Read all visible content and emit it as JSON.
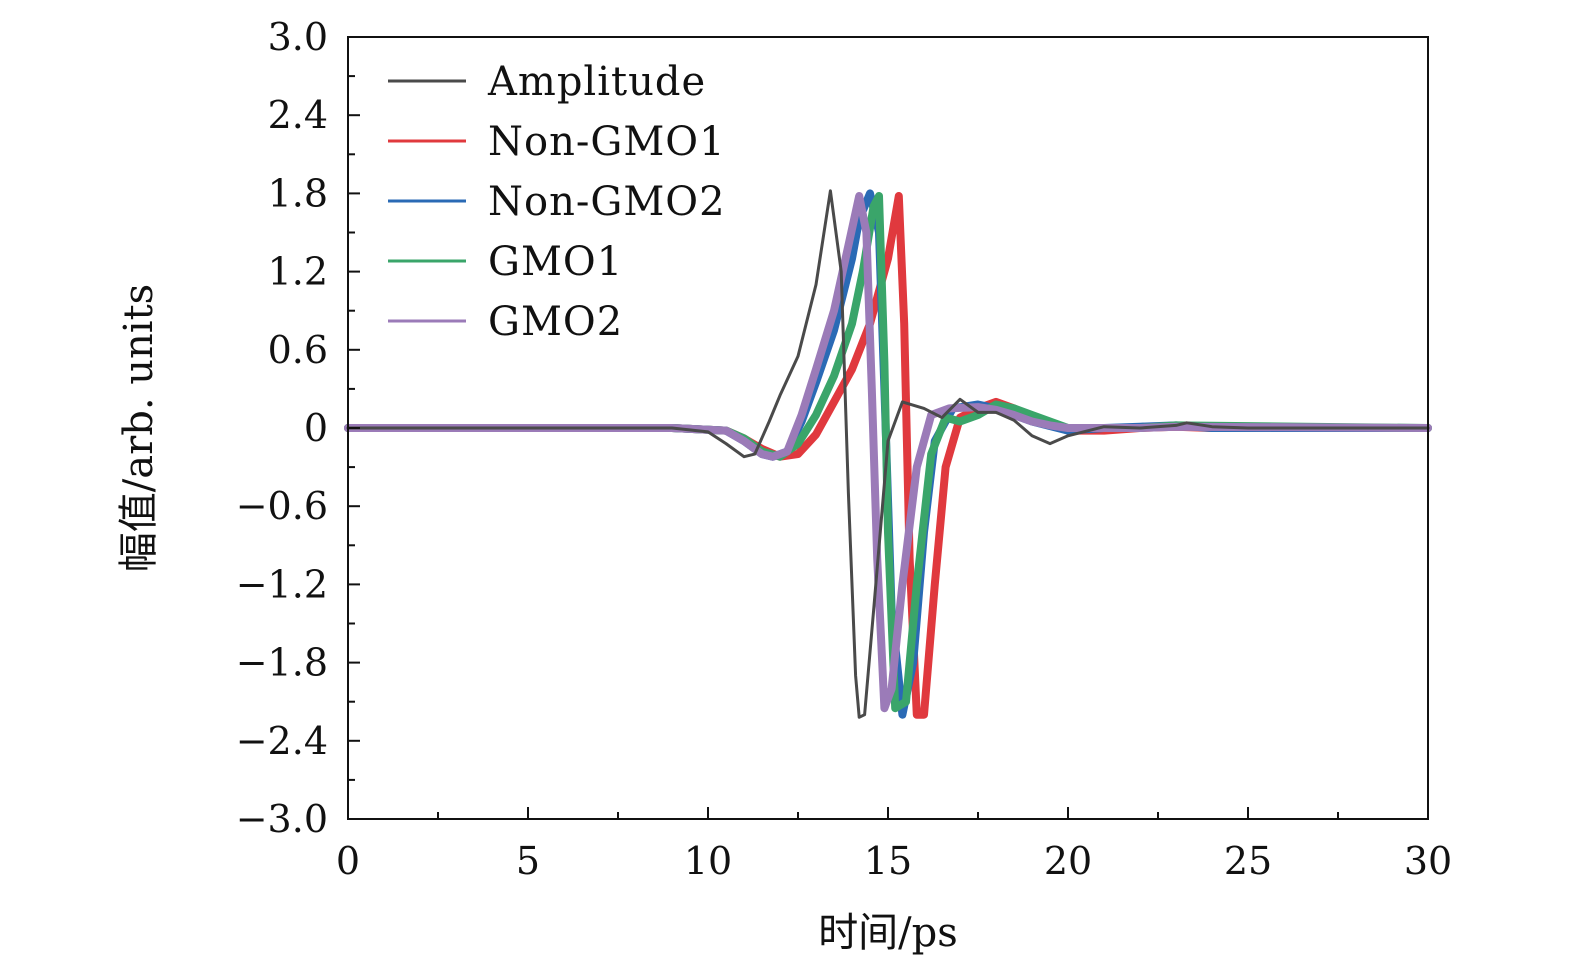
{
  "chart_data": {
    "type": "line",
    "title": "",
    "xlabel": "时间/ps",
    "ylabel": "幅值/arb. units",
    "xlim": [
      0,
      30
    ],
    "ylim": [
      -3.0,
      3.0
    ],
    "xticks": [
      0,
      5,
      10,
      15,
      20,
      25,
      30
    ],
    "xtick_labels": [
      "0",
      "5",
      "10",
      "15",
      "20",
      "25",
      "30"
    ],
    "yticks": [
      3.0,
      2.4,
      1.8,
      1.2,
      0.6,
      0,
      -0.6,
      -1.2,
      -1.8,
      -2.4,
      -3.0
    ],
    "ytick_labels": [
      "3.0",
      "2.4",
      "1.8",
      "1.2",
      "0.6",
      "0",
      "−0.6",
      "−1.2",
      "−1.8",
      "−2.4",
      "−3.0"
    ],
    "legend_position": "top-left",
    "grid": false,
    "series": [
      {
        "name": "Amplitude",
        "color": "#4a4a4a",
        "x": [
          0,
          9.0,
          10.0,
          10.5,
          11.0,
          11.3,
          11.7,
          12.0,
          12.5,
          13.0,
          13.4,
          13.7,
          13.9,
          14.1,
          14.2,
          14.35,
          14.6,
          15.0,
          15.4,
          16.0,
          16.5,
          17.0,
          17.5,
          18.0,
          18.5,
          19.0,
          19.5,
          20.0,
          21.0,
          22.0,
          23.0,
          23.3,
          24.0,
          25.0,
          30.0
        ],
        "y": [
          0,
          0,
          -0.03,
          -0.12,
          -0.22,
          -0.2,
          0.05,
          0.25,
          0.55,
          1.1,
          1.82,
          1.2,
          -0.5,
          -1.9,
          -2.22,
          -2.2,
          -1.4,
          -0.1,
          0.2,
          0.15,
          0.08,
          0.22,
          0.12,
          0.12,
          0.06,
          -0.06,
          -0.12,
          -0.06,
          0.01,
          0.0,
          0.02,
          0.04,
          0.01,
          0.0,
          0
        ]
      },
      {
        "name": "Non-GMO1",
        "color": "#e0393e",
        "x": [
          0,
          9.0,
          10.5,
          11.0,
          11.5,
          12.0,
          12.5,
          13.0,
          13.5,
          14.0,
          14.5,
          15.0,
          15.3,
          15.45,
          15.6,
          15.8,
          16.0,
          16.3,
          16.6,
          17.0,
          17.5,
          18.0,
          18.5,
          19.0,
          20.0,
          21.0,
          22.0,
          23.0,
          24.0,
          25.0,
          30.0
        ],
        "y": [
          0,
          0,
          -0.02,
          -0.08,
          -0.16,
          -0.22,
          -0.2,
          -0.05,
          0.2,
          0.45,
          0.8,
          1.3,
          1.78,
          0.8,
          -1.0,
          -2.2,
          -2.2,
          -1.2,
          -0.3,
          0.08,
          0.15,
          0.2,
          0.15,
          0.08,
          -0.02,
          -0.02,
          0.0,
          0.01,
          0.0,
          0.0,
          0
        ]
      },
      {
        "name": "Non-GMO2",
        "color": "#2a6ab5",
        "x": [
          0,
          9.0,
          10.5,
          11.0,
          11.5,
          11.8,
          12.2,
          12.6,
          13.0,
          13.5,
          14.0,
          14.2,
          14.5,
          14.75,
          14.9,
          15.1,
          15.4,
          15.7,
          16.0,
          16.3,
          16.8,
          17.5,
          18.0,
          18.5,
          19.0,
          20.0,
          21.0,
          22.0,
          23.0,
          24.0,
          30.0
        ],
        "y": [
          0,
          0,
          -0.02,
          -0.1,
          -0.2,
          -0.22,
          -0.18,
          0.05,
          0.35,
          0.75,
          1.3,
          1.6,
          1.8,
          1.5,
          0.3,
          -1.4,
          -2.2,
          -1.8,
          -0.8,
          -0.1,
          0.15,
          0.18,
          0.15,
          0.1,
          0.05,
          -0.02,
          0.0,
          0.01,
          0.02,
          0.0,
          0
        ]
      },
      {
        "name": "GMO1",
        "color": "#3aa56a",
        "x": [
          0,
          9.0,
          10.5,
          11.0,
          11.5,
          12.0,
          12.5,
          13.0,
          13.5,
          14.0,
          14.3,
          14.6,
          14.75,
          14.9,
          15.0,
          15.2,
          15.5,
          15.8,
          16.2,
          16.6,
          17.0,
          17.5,
          18.0,
          18.5,
          19.0,
          19.5,
          20.0,
          21.0,
          22.0,
          23.0,
          30.0
        ],
        "y": [
          0,
          0,
          -0.02,
          -0.08,
          -0.18,
          -0.22,
          -0.12,
          0.1,
          0.4,
          0.8,
          1.2,
          1.7,
          1.78,
          0.5,
          -0.8,
          -2.15,
          -2.1,
          -1.2,
          -0.2,
          0.08,
          0.05,
          0.1,
          0.18,
          0.15,
          0.1,
          0.05,
          0.0,
          0.0,
          0.0,
          0.02,
          0
        ]
      },
      {
        "name": "GMO2",
        "color": "#9b7bb8",
        "x": [
          0,
          9.0,
          10.5,
          11.0,
          11.5,
          11.8,
          12.2,
          12.6,
          13.0,
          13.5,
          13.9,
          14.2,
          14.4,
          14.55,
          14.7,
          14.9,
          15.1,
          15.4,
          15.8,
          16.2,
          16.7,
          17.5,
          18.0,
          18.5,
          19.0,
          19.5,
          20.0,
          21.0,
          22.0,
          23.0,
          30.0
        ],
        "y": [
          0,
          0,
          -0.02,
          -0.1,
          -0.2,
          -0.22,
          -0.18,
          0.1,
          0.45,
          0.9,
          1.4,
          1.78,
          1.5,
          0.3,
          -1.0,
          -2.15,
          -2.0,
          -1.2,
          -0.3,
          0.1,
          0.15,
          0.16,
          0.14,
          0.1,
          0.05,
          0.02,
          0.0,
          0.0,
          0.0,
          0.01,
          0
        ]
      }
    ]
  }
}
